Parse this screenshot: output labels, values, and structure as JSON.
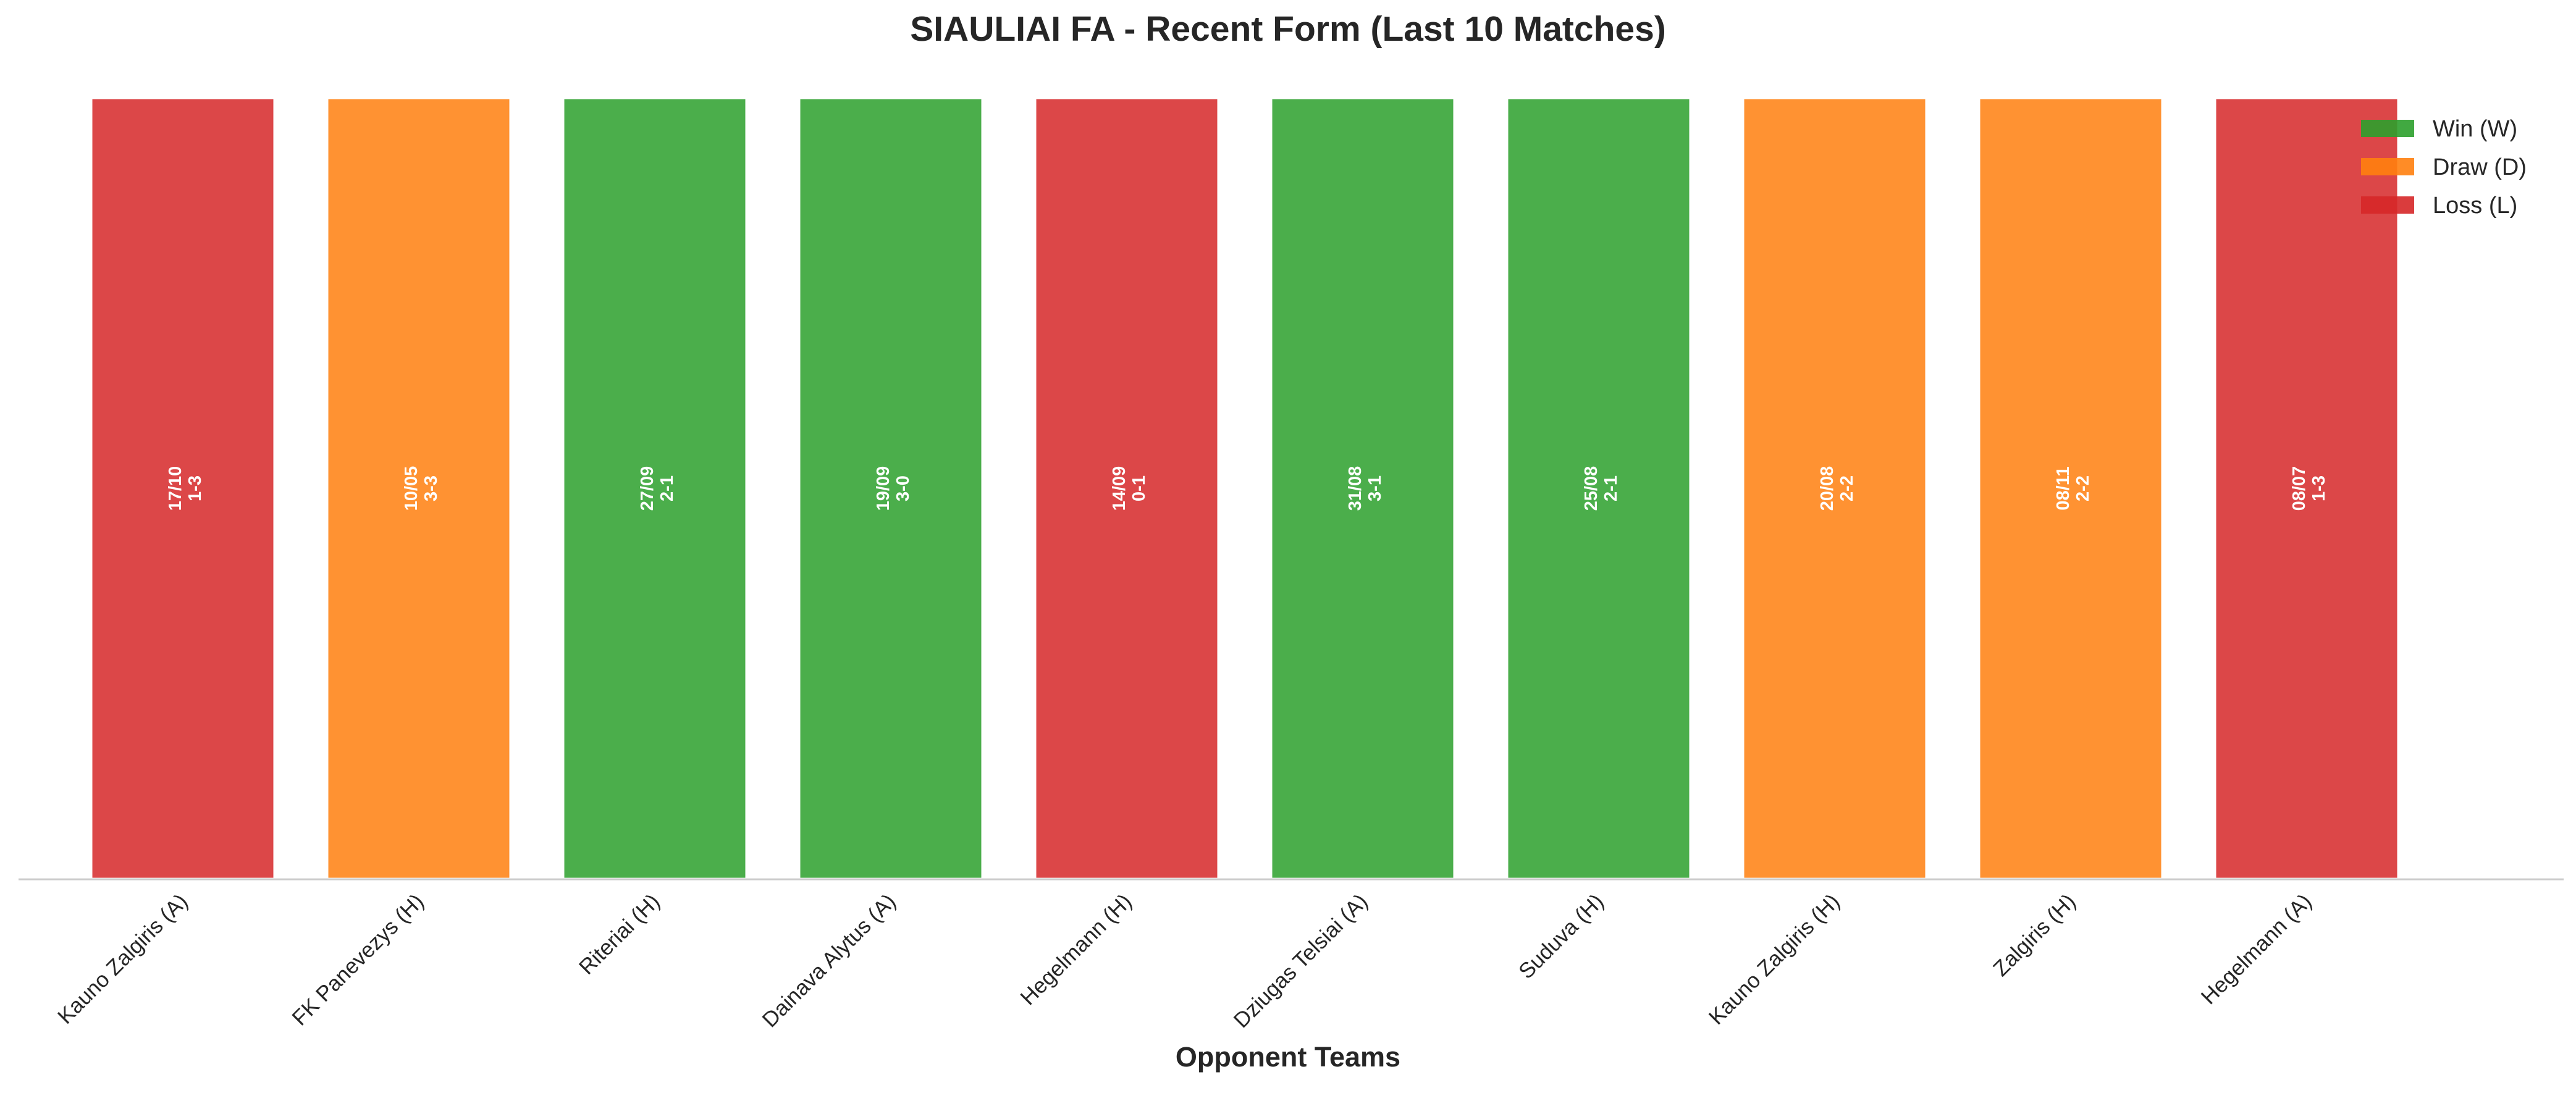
{
  "chart_data": {
    "type": "bar",
    "title": "SIAULIAI FA - Recent Form (Last 10 Matches)",
    "xlabel": "Opponent Teams",
    "ylabel": "",
    "categories": [
      "Kauno Zalgiris (A)",
      "FK Panevezys (H)",
      "Riteriai (H)",
      "Dainava Alytus (A)",
      "Hegelmann (H)",
      "Dziugas Telsiai (A)",
      "Suduva (H)",
      "Kauno Zalgiris (H)",
      "Zalgiris (H)",
      "Hegelmann (A)"
    ],
    "values": [
      1,
      1,
      1,
      1,
      1,
      1,
      1,
      1,
      1,
      1
    ],
    "results": [
      "L",
      "D",
      "W",
      "W",
      "L",
      "W",
      "W",
      "D",
      "D",
      "L"
    ],
    "dates": [
      "17/10",
      "10/05",
      "27/09",
      "19/09",
      "14/09",
      "31/08",
      "25/08",
      "20/08",
      "08/11",
      "08/07"
    ],
    "scores": [
      "1-3",
      "3-3",
      "2-1",
      "3-0",
      "0-1",
      "3-1",
      "2-1",
      "2-2",
      "2-2",
      "1-3"
    ],
    "ylim": [
      0,
      1
    ],
    "grid": false,
    "legend": {
      "placement": "top-right",
      "entries": [
        {
          "key": "W",
          "label": "Win (W)",
          "color": "#2ca02c"
        },
        {
          "key": "D",
          "label": "Draw (D)",
          "color": "#ff7f0e"
        },
        {
          "key": "L",
          "label": "Loss (L)",
          "color": "#d62728"
        }
      ]
    },
    "colors": {
      "W": "#2ca02c",
      "D": "#ff7f0e",
      "L": "#d62728"
    }
  }
}
